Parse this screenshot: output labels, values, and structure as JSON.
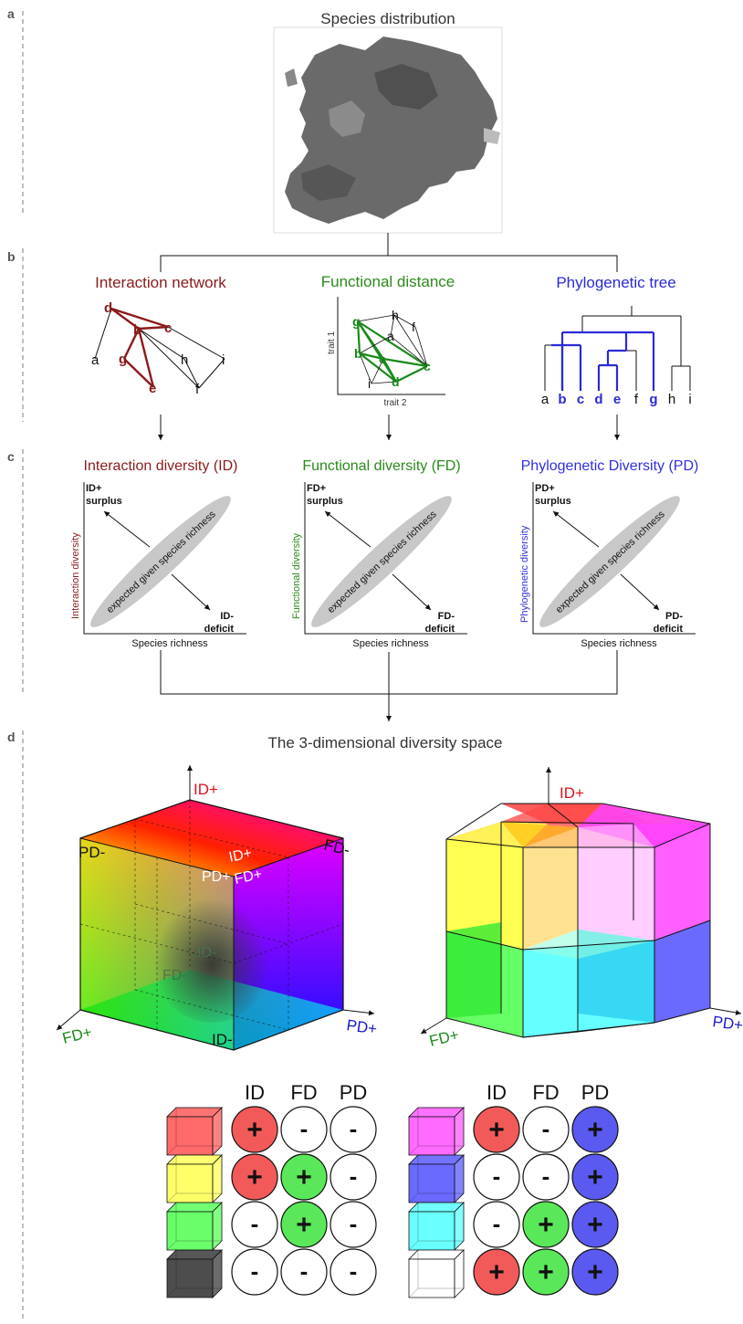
{
  "panels": {
    "a": {
      "letter": "a",
      "title": "Species distribution"
    },
    "b": {
      "letter": "b",
      "network": {
        "title": "Interaction network",
        "nodes": [
          "d",
          "c",
          "b",
          "a",
          "g",
          "h",
          "i",
          "e",
          "f"
        ]
      },
      "functional": {
        "title": "Functional distance",
        "x_label": "trait 2",
        "y_label": "trait 1",
        "nodes": [
          "g",
          "h",
          "f",
          "a",
          "b",
          "e",
          "c",
          "i",
          "d"
        ]
      },
      "phylo": {
        "title": "Phylogenetic tree",
        "tips": [
          "a",
          "b",
          "c",
          "d",
          "e",
          "f",
          "g",
          "h",
          "i"
        ]
      }
    },
    "c": {
      "letter": "c",
      "plots": [
        {
          "title": "Interaction diversity (ID)",
          "ylabel": "Interaction diversity",
          "xlabel": "Species richness",
          "surplus_a": "ID+",
          "surplus_b": "surplus",
          "deficit_a": "ID-",
          "deficit_b": "deficit",
          "ellipse_label": "expected given species richness"
        },
        {
          "title": "Functional diversity (FD)",
          "ylabel": "Functional diversity",
          "xlabel": "Species richness",
          "surplus_a": "FD+",
          "surplus_b": "surplus",
          "deficit_a": "FD-",
          "deficit_b": "deficit",
          "ellipse_label": "expected given species richness"
        },
        {
          "title": "Phylogenetic Diversity (PD)",
          "ylabel": "Phylogenetic diversity",
          "xlabel": "Species richness",
          "surplus_a": "PD+",
          "surplus_b": "surplus",
          "deficit_a": "PD-",
          "deficit_b": "deficit",
          "ellipse_label": "expected given species richness"
        }
      ]
    },
    "d": {
      "letter": "d",
      "title": "The 3-dimensional diversity space",
      "cube_left": {
        "axis_id": "ID+",
        "axis_fd": "FD+",
        "axis_pd": "PD+",
        "corner_pd_minus": "PD-",
        "corner_fd_minus": "FD-",
        "corner_id_minus": "ID-",
        "center_id_plus": "ID+",
        "center_pd_plus": "PD+",
        "center_fd_plus": "FD+",
        "inner_fd_minus": "FD-",
        "inner_id_minus": "ID-"
      },
      "cube_right": {
        "axis_id": "ID+",
        "axis_fd": "FD+",
        "axis_pd": "PD+"
      },
      "legend": {
        "headers": [
          "ID",
          "FD",
          "PD"
        ],
        "left_rows": [
          {
            "cube_color": "#ff5a5a",
            "signs": [
              "+",
              "-",
              "-"
            ]
          },
          {
            "cube_color": "#ffff5a",
            "signs": [
              "+",
              "+",
              "-"
            ]
          },
          {
            "cube_color": "#5aff5a",
            "signs": [
              "-",
              "+",
              "-"
            ]
          },
          {
            "cube_color": "#3a3a3a",
            "signs": [
              "-",
              "-",
              "-"
            ]
          }
        ],
        "right_rows": [
          {
            "cube_color": "#ff5aff",
            "signs": [
              "+",
              "-",
              "+"
            ]
          },
          {
            "cube_color": "#5a5aff",
            "signs": [
              "-",
              "-",
              "+"
            ]
          },
          {
            "cube_color": "#5affff",
            "signs": [
              "-",
              "+",
              "+"
            ]
          },
          {
            "cube_color": "#ffffff",
            "signs": [
              "+",
              "+",
              "+"
            ]
          }
        ],
        "sign_colors": {
          "ID": "#f25a5a",
          "FD": "#5ae85a",
          "PD": "#5a5af0"
        }
      }
    }
  },
  "colors": {
    "network": "#8b1a1a",
    "functional": "#2a8a1a",
    "phylo": "#2a2ad8",
    "id_red": "#e0101a",
    "fd_green": "#1a8a1a",
    "pd_blue": "#1a1ad0"
  }
}
